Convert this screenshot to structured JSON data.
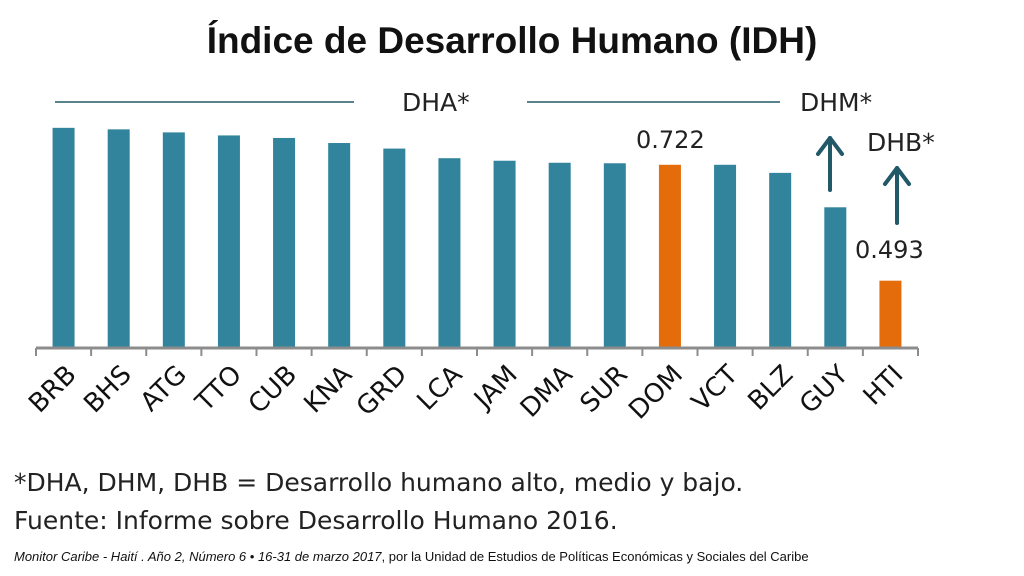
{
  "title": "Índice de Desarrollo Humano (IDH)",
  "chart_data": {
    "type": "bar",
    "categories": [
      "BRB",
      "BHS",
      "ATG",
      "TTO",
      "CUB",
      "KNA",
      "GRD",
      "LCA",
      "JAM",
      "DMA",
      "SUR",
      "DOM",
      "VCT",
      "BLZ",
      "GUY",
      "HTI"
    ],
    "values": [
      0.795,
      0.792,
      0.786,
      0.78,
      0.775,
      0.765,
      0.754,
      0.735,
      0.73,
      0.726,
      0.725,
      0.722,
      0.722,
      0.706,
      0.638,
      0.493
    ],
    "highlighted": [
      "DOM",
      "HTI"
    ],
    "ylim": [
      0.36,
      0.85
    ],
    "colors": {
      "default": "#31849b",
      "highlight": "#e46c0a",
      "arrow": "#215968",
      "line": "#215968"
    },
    "annotations": {
      "dha": "DHA*",
      "dhm": "DHM*",
      "dhb": "DHB*",
      "dom_value": "0.722",
      "hti_value": "0.493"
    }
  },
  "notes": {
    "definition": "*DHA, DHM, DHB = Desarrollo humano alto, medio y bajo.",
    "source": "Fuente: Informe sobre Desarrollo Humano 2016."
  },
  "footer": {
    "italic": "Monitor Caribe - Haití .  Año 2, Número 6 • 16-31 de marzo 2017",
    "regular": ", por la Unidad de Estudios de Políticas Económicas y Sociales del Caribe"
  }
}
